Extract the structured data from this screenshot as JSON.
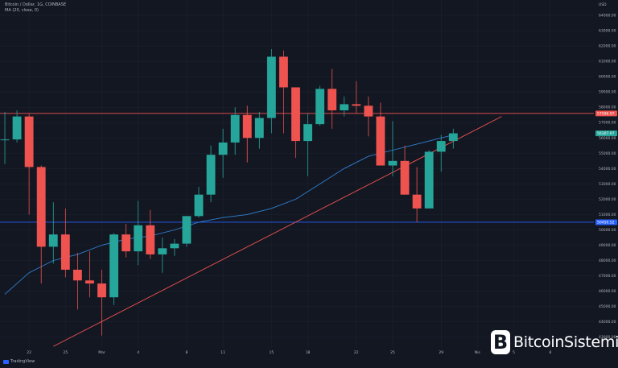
{
  "header": {
    "title": "Bitcoin / Dollar, 1G, COINBASE",
    "indicator": "MA (20, close, 0)"
  },
  "chart_data": {
    "type": "candlestick",
    "y_axis": {
      "position": "right",
      "ticks": [
        43000,
        44000,
        45000,
        46000,
        47000,
        48000,
        49000,
        50000,
        51000,
        52000,
        53000,
        54000,
        55000,
        56000,
        57000,
        58000,
        59000,
        60000,
        61000,
        62000,
        63000,
        64000
      ],
      "tick_labels": [
        "43000.00",
        "44000.00",
        "45000.00",
        "46000.00",
        "47000.00",
        "48000.00",
        "49000.00",
        "50000.00",
        "51000.00",
        "52000.00",
        "53000.00",
        "54000.00",
        "55000.00",
        "56000.00",
        "57000.00",
        "58000.00",
        "59000.00",
        "60000.00",
        "61000.00",
        "62000.00",
        "63000.00",
        "64000.00"
      ],
      "top_label": "USD",
      "ylim": [
        42300,
        65000
      ]
    },
    "x_axis": {
      "tick_labels": [
        {
          "label": "22",
          "x": 2
        },
        {
          "label": "25",
          "x": 5
        },
        {
          "label": "Mar",
          "x": 8
        },
        {
          "label": "4",
          "x": 11
        },
        {
          "label": "8",
          "x": 15
        },
        {
          "label": "11",
          "x": 18
        },
        {
          "label": "15",
          "x": 22
        },
        {
          "label": "18",
          "x": 25
        },
        {
          "label": "22",
          "x": 29
        },
        {
          "label": "25",
          "x": 32
        },
        {
          "label": "29",
          "x": 36
        },
        {
          "label": "Nis",
          "x": 39
        },
        {
          "label": "5",
          "x": 42
        },
        {
          "label": "8",
          "x": 45
        }
      ],
      "xlim": [
        -0.4,
        48.6
      ]
    },
    "candles": [
      {
        "x": 0,
        "o": 55900,
        "h": 57700,
        "l": 54300,
        "c": 55900
      },
      {
        "x": 1,
        "o": 55900,
        "h": 57800,
        "l": 55700,
        "c": 57400
      },
      {
        "x": 2,
        "o": 57400,
        "h": 57600,
        "l": 51000,
        "c": 54100
      },
      {
        "x": 3,
        "o": 54100,
        "h": 54200,
        "l": 46500,
        "c": 48900
      },
      {
        "x": 4,
        "o": 48900,
        "h": 51800,
        "l": 47800,
        "c": 49700
      },
      {
        "x": 5,
        "o": 49700,
        "h": 51400,
        "l": 46900,
        "c": 47400
      },
      {
        "x": 6,
        "o": 47400,
        "h": 48500,
        "l": 44800,
        "c": 46700
      },
      {
        "x": 7,
        "o": 46700,
        "h": 48600,
        "l": 45600,
        "c": 46500
      },
      {
        "x": 8,
        "o": 46500,
        "h": 47400,
        "l": 43100,
        "c": 45600
      },
      {
        "x": 9,
        "o": 45600,
        "h": 49800,
        "l": 45100,
        "c": 49700
      },
      {
        "x": 10,
        "o": 49700,
        "h": 50400,
        "l": 48200,
        "c": 48600
      },
      {
        "x": 11,
        "o": 48600,
        "h": 51900,
        "l": 47700,
        "c": 50300
      },
      {
        "x": 12,
        "o": 50300,
        "h": 51300,
        "l": 48100,
        "c": 48400
      },
      {
        "x": 13,
        "o": 48400,
        "h": 49500,
        "l": 47200,
        "c": 48800
      },
      {
        "x": 14,
        "o": 48800,
        "h": 49400,
        "l": 48300,
        "c": 49100
      },
      {
        "x": 15,
        "o": 49100,
        "h": 50700,
        "l": 48900,
        "c": 50900
      },
      {
        "x": 16,
        "o": 50900,
        "h": 52800,
        "l": 50800,
        "c": 52300
      },
      {
        "x": 17,
        "o": 52300,
        "h": 55500,
        "l": 51800,
        "c": 54900
      },
      {
        "x": 18,
        "o": 54900,
        "h": 56600,
        "l": 53400,
        "c": 55700
      },
      {
        "x": 19,
        "o": 55700,
        "h": 58000,
        "l": 54900,
        "c": 57500
      },
      {
        "x": 20,
        "o": 57500,
        "h": 58100,
        "l": 54400,
        "c": 56000
      },
      {
        "x": 21,
        "o": 56000,
        "h": 57700,
        "l": 55300,
        "c": 57300
      },
      {
        "x": 22,
        "o": 57300,
        "h": 61800,
        "l": 56300,
        "c": 61300
      },
      {
        "x": 23,
        "o": 61300,
        "h": 61700,
        "l": 56300,
        "c": 59300
      },
      {
        "x": 24,
        "o": 59300,
        "h": 59300,
        "l": 54700,
        "c": 55800
      },
      {
        "x": 25,
        "o": 55800,
        "h": 57600,
        "l": 53500,
        "c": 56900
      },
      {
        "x": 26,
        "o": 56900,
        "h": 59400,
        "l": 56800,
        "c": 59200
      },
      {
        "x": 27,
        "o": 59200,
        "h": 60500,
        "l": 56600,
        "c": 57800
      },
      {
        "x": 28,
        "o": 57800,
        "h": 58700,
        "l": 57400,
        "c": 58200
      },
      {
        "x": 29,
        "o": 58200,
        "h": 59700,
        "l": 57600,
        "c": 58100
      },
      {
        "x": 30,
        "o": 58100,
        "h": 58700,
        "l": 56100,
        "c": 57400
      },
      {
        "x": 31,
        "o": 57400,
        "h": 58300,
        "l": 54200,
        "c": 54200
      },
      {
        "x": 32,
        "o": 54200,
        "h": 57100,
        "l": 53500,
        "c": 54500
      },
      {
        "x": 33,
        "o": 54500,
        "h": 55500,
        "l": 52300,
        "c": 52300
      },
      {
        "x": 34,
        "o": 52300,
        "h": 54100,
        "l": 50500,
        "c": 51400
      },
      {
        "x": 35,
        "o": 51400,
        "h": 55200,
        "l": 51400,
        "c": 55100
      },
      {
        "x": 36,
        "o": 55100,
        "h": 56200,
        "l": 53800,
        "c": 55800
      },
      {
        "x": 37,
        "o": 55800,
        "h": 56600,
        "l": 55300,
        "c": 56300
      }
    ],
    "ma": [
      {
        "x": 0,
        "y": 45800
      },
      {
        "x": 2,
        "y": 47200
      },
      {
        "x": 4,
        "y": 48000
      },
      {
        "x": 6,
        "y": 48400
      },
      {
        "x": 8,
        "y": 49000
      },
      {
        "x": 10,
        "y": 49400
      },
      {
        "x": 12,
        "y": 49600
      },
      {
        "x": 14,
        "y": 50000
      },
      {
        "x": 16,
        "y": 50500
      },
      {
        "x": 18,
        "y": 50800
      },
      {
        "x": 20,
        "y": 51000
      },
      {
        "x": 22,
        "y": 51400
      },
      {
        "x": 24,
        "y": 52000
      },
      {
        "x": 26,
        "y": 53000
      },
      {
        "x": 28,
        "y": 54000
      },
      {
        "x": 30,
        "y": 54800
      },
      {
        "x": 32,
        "y": 55200
      },
      {
        "x": 34,
        "y": 55600
      },
      {
        "x": 36,
        "y": 56000
      },
      {
        "x": 37,
        "y": 56200
      }
    ],
    "hlines": [
      {
        "value": 57600,
        "label": "57596.97",
        "color": "#f05350"
      },
      {
        "value": 50500,
        "label": "50450.52",
        "color": "#2962ff"
      }
    ],
    "trendline": {
      "from": {
        "x": 4,
        "y": 42400
      },
      "to": {
        "x": 41,
        "y": 57400
      },
      "color": "#f05350"
    },
    "last_price": {
      "value": 56300,
      "label": "56307.97"
    },
    "colors": {
      "up": "#26a69a",
      "down": "#ef5350",
      "ma": "#2f80d1",
      "grid": "#1f2433",
      "background": "#131722"
    }
  },
  "footer": {
    "tradingview": "TradingView"
  },
  "watermark": {
    "mark": "B",
    "name": "BitcoinSistemi"
  }
}
